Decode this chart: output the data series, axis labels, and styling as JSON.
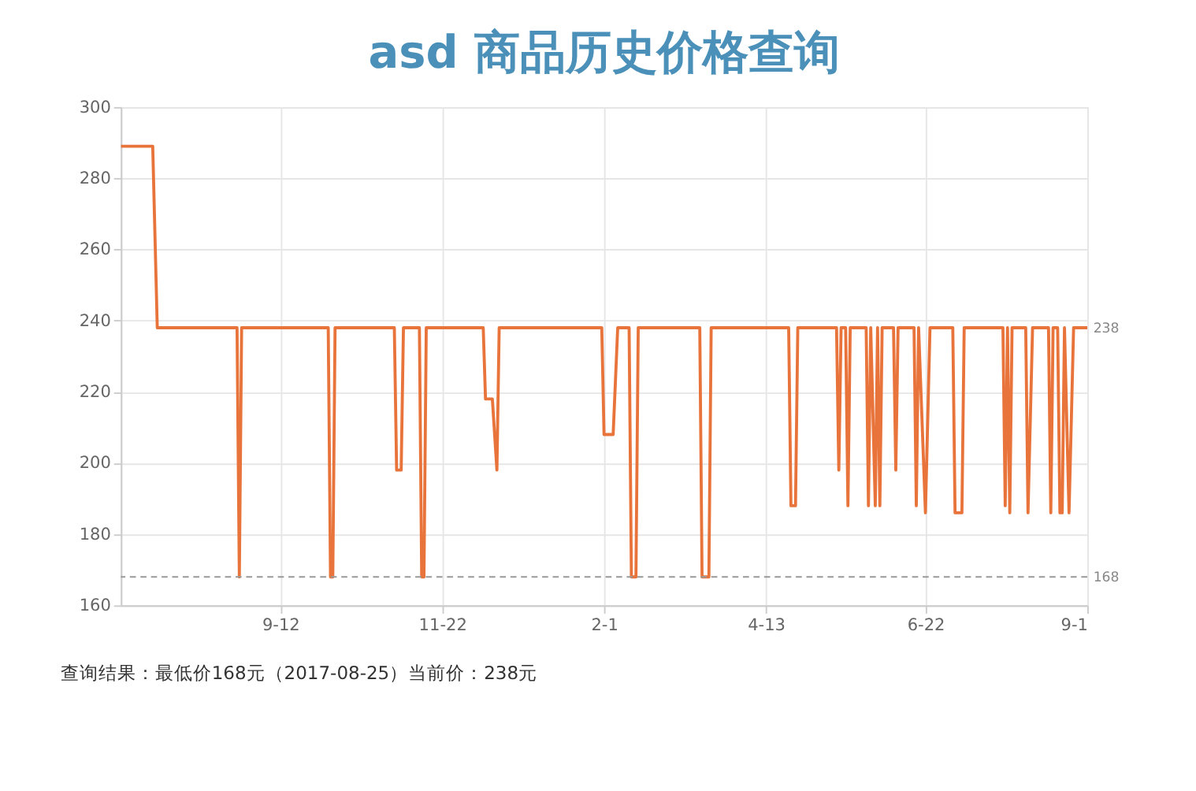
{
  "chart_data": {
    "type": "line",
    "title": "asd 商品历史价格查询",
    "series": [
      {
        "color": "#e8743b",
        "x": [
          "2017-07-04",
          "2017-07-18",
          "2017-07-20",
          "2017-08-24",
          "2017-08-25",
          "2017-08-26",
          "2017-10-03",
          "2017-10-04",
          "2017-10-05",
          "2017-10-06",
          "2017-11-01",
          "2017-11-02",
          "2017-11-04",
          "2017-11-05",
          "2017-11-12",
          "2017-11-13",
          "2017-11-14",
          "2017-11-15",
          "2017-12-10",
          "2017-12-11",
          "2017-12-14",
          "2017-12-16",
          "2017-12-17",
          "2018-01-31",
          "2018-02-01",
          "2018-02-05",
          "2018-02-07",
          "2018-02-12",
          "2018-02-13",
          "2018-02-15",
          "2018-02-16",
          "2018-03-15",
          "2018-03-16",
          "2018-03-19",
          "2018-03-20",
          "2018-04-23",
          "2018-04-24",
          "2018-04-26",
          "2018-04-27",
          "2018-05-14",
          "2018-05-15",
          "2018-05-16",
          "2018-05-18",
          "2018-05-19",
          "2018-05-20",
          "2018-05-27",
          "2018-05-28",
          "2018-05-29",
          "2018-05-31",
          "2018-06-01",
          "2018-06-02",
          "2018-06-03",
          "2018-06-08",
          "2018-06-09",
          "2018-06-10",
          "2018-06-17",
          "2018-06-18",
          "2018-06-19",
          "2018-06-22",
          "2018-06-24",
          "2018-07-04",
          "2018-07-05",
          "2018-07-08",
          "2018-07-09",
          "2018-07-26",
          "2018-07-27",
          "2018-07-28",
          "2018-07-29",
          "2018-07-30",
          "2018-08-05",
          "2018-08-06",
          "2018-08-08",
          "2018-08-15",
          "2018-08-16",
          "2018-08-17",
          "2018-08-19",
          "2018-08-20",
          "2018-08-21",
          "2018-08-22",
          "2018-08-24",
          "2018-08-26",
          "2018-09-01"
        ],
        "values": [
          289,
          289,
          238,
          238,
          168,
          238,
          238,
          168,
          168,
          238,
          238,
          198,
          198,
          238,
          238,
          168,
          168,
          238,
          238,
          218,
          218,
          198,
          238,
          238,
          208,
          208,
          238,
          238,
          168,
          168,
          238,
          238,
          168,
          168,
          238,
          238,
          188,
          188,
          238,
          238,
          198,
          238,
          238,
          188,
          238,
          238,
          188,
          238,
          188,
          238,
          188,
          238,
          238,
          198,
          238,
          238,
          188,
          238,
          186,
          238,
          238,
          186,
          186,
          238,
          238,
          188,
          238,
          186,
          238,
          238,
          186,
          238,
          238,
          186,
          238,
          238,
          186,
          186,
          238,
          186,
          238,
          238
        ]
      }
    ],
    "xlim": [
      "2017-07-04",
      "2018-09-01"
    ],
    "xticks": [
      {
        "value": "2017-09-12",
        "label": "9-12"
      },
      {
        "value": "2017-11-22",
        "label": "11-22"
      },
      {
        "value": "2018-02-01",
        "label": "2-1"
      },
      {
        "value": "2018-04-13",
        "label": "4-13"
      },
      {
        "value": "2018-06-22",
        "label": "6-22"
      },
      {
        "value": "2018-09-01",
        "label": "9-1"
      }
    ],
    "ylim": [
      160,
      300
    ],
    "yticks": [
      160,
      180,
      200,
      220,
      240,
      260,
      280,
      300
    ],
    "grid": true,
    "marker": "none",
    "line_style": "solid",
    "ref_lines": [
      {
        "axis": "y",
        "value": 168,
        "label": "168",
        "color": "#999999",
        "line_style": "dashed"
      }
    ],
    "annotations": [
      {
        "text": "238",
        "x": "2018-09-01",
        "y": 238
      },
      "查询结果：最低价168元（2017-08-25）当前价：238元"
    ]
  }
}
